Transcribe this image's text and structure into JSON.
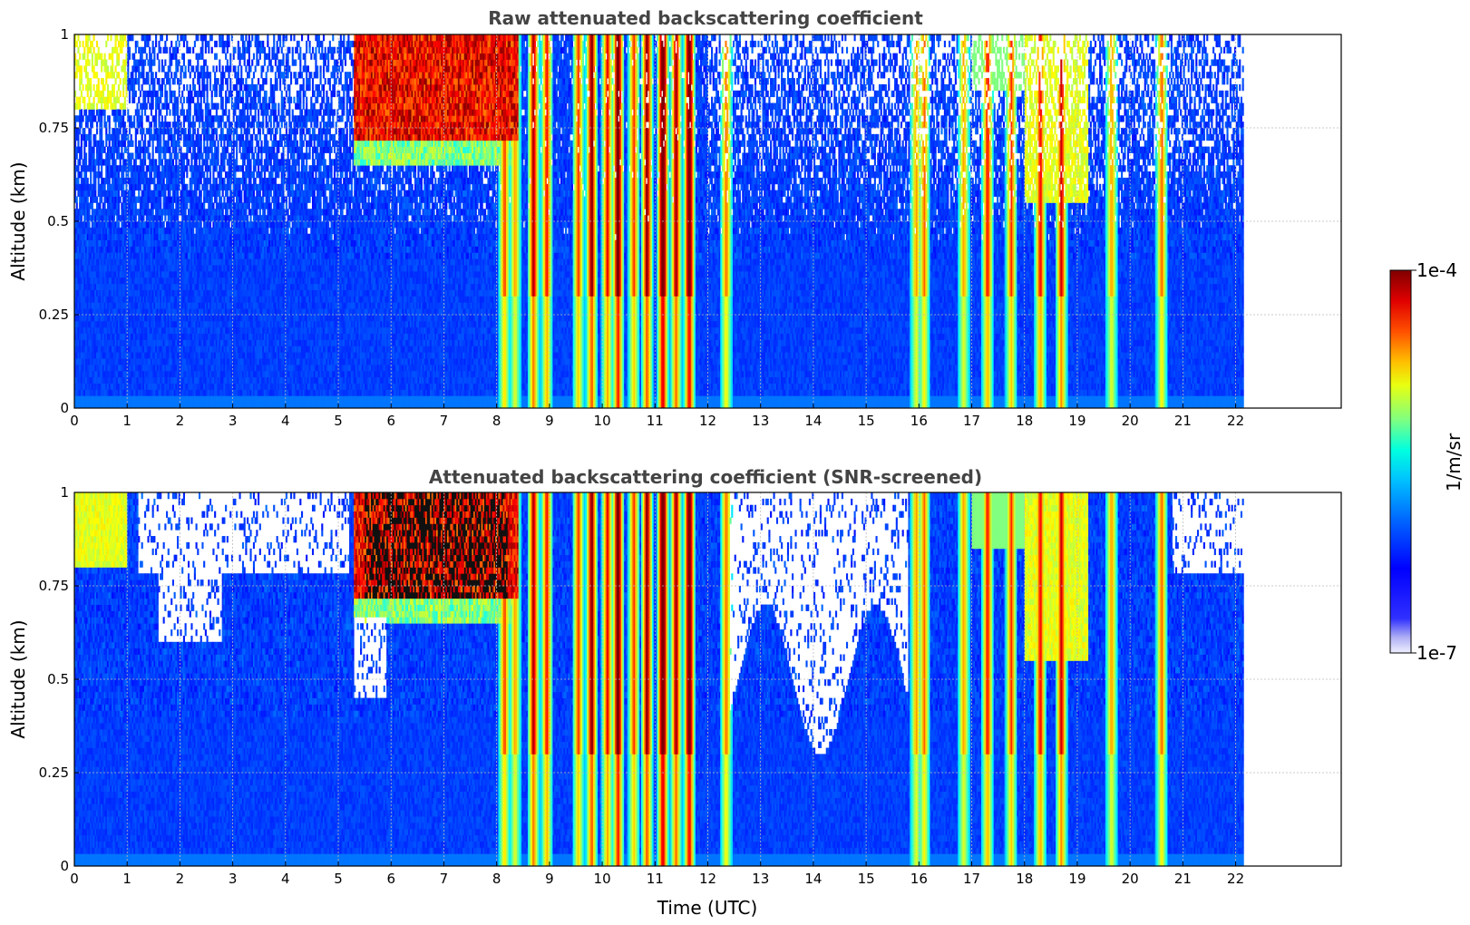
{
  "chart_data": [
    {
      "type": "heatmap",
      "title": "Raw attenuated backscattering coefficient",
      "xlabel": "",
      "ylabel": "Altitude (km)",
      "xlim": [
        0,
        24
      ],
      "ylim": [
        0,
        1
      ],
      "data_x_end": 22.15,
      "x_ticks": [
        "0",
        "1",
        "2",
        "3",
        "4",
        "5",
        "6",
        "7",
        "8",
        "9",
        "10",
        "11",
        "12",
        "13",
        "14",
        "15",
        "16",
        "17",
        "18",
        "19",
        "20",
        "21",
        "22"
      ],
      "y_ticks": [
        "0",
        "0.25",
        "0.5",
        "0.75",
        "1"
      ],
      "grid": true,
      "screened": false
    },
    {
      "type": "heatmap",
      "title": "Attenuated backscattering coefficient (SNR-screened)",
      "xlabel": "Time (UTC)",
      "ylabel": "Altitude (km)",
      "xlim": [
        0,
        24
      ],
      "ylim": [
        0,
        1
      ],
      "data_x_end": 22.15,
      "x_ticks": [
        "0",
        "1",
        "2",
        "3",
        "4",
        "5",
        "6",
        "7",
        "8",
        "9",
        "10",
        "11",
        "12",
        "13",
        "14",
        "15",
        "16",
        "17",
        "18",
        "19",
        "20",
        "21",
        "22"
      ],
      "y_ticks": [
        "0",
        "0.25",
        "0.5",
        "0.75",
        "1"
      ],
      "grid": true,
      "screened": true
    }
  ],
  "colorbar": {
    "label": "1/m/sr",
    "max_label": "1e-4",
    "min_label": "1e-7",
    "colormap": "jet",
    "low_colors": [
      "#f0f0ff",
      "#c8c8f8",
      "#9a9af0"
    ],
    "colors": [
      "#00008f",
      "#0000ff",
      "#0080ff",
      "#00ffff",
      "#80ff80",
      "#ffff00",
      "#ff8000",
      "#ff0000",
      "#800000"
    ]
  }
}
